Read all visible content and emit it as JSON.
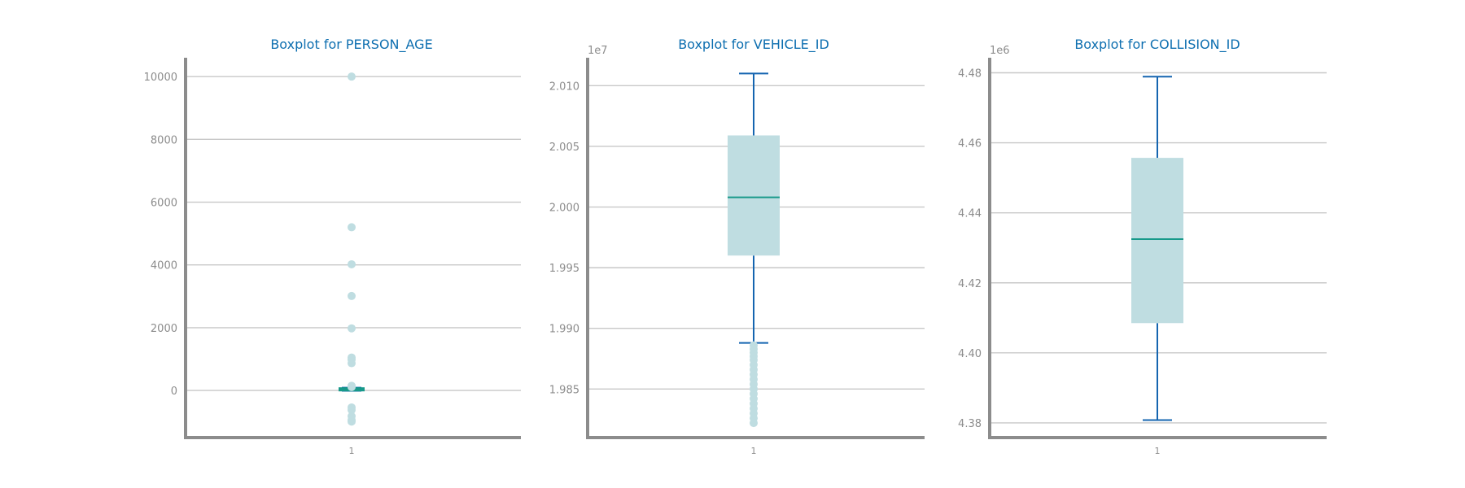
{
  "colors": {
    "title": "#0e6fb0",
    "whisker": "#1565b0",
    "box_fill": "#bfdde1",
    "median": "#17998a",
    "flier": "#bfdde1",
    "grid": "#c8c8c8",
    "axis": "#8c8c8c",
    "tick_text": "#8c8c8c"
  },
  "chart_data": [
    {
      "type": "boxplot",
      "title": "Boxplot for PERSON_AGE",
      "category": "1",
      "offset_label": "",
      "ylim": [
        -1500,
        10600
      ],
      "yticks": [
        0,
        2000,
        4000,
        6000,
        8000,
        10000
      ],
      "ytick_labels": [
        "0",
        "2000",
        "4000",
        "6000",
        "8000",
        "10000"
      ],
      "whisker_low": -10,
      "q1": 22,
      "median": 37,
      "q3": 52,
      "whisker_high": 90,
      "fliers": [
        10000,
        5200,
        4020,
        3010,
        1980,
        1050,
        980,
        870,
        150,
        110,
        -540,
        -620,
        -820,
        -940,
        -990
      ]
    },
    {
      "type": "boxplot",
      "title": "Boxplot for VEHICLE_ID",
      "category": "1",
      "offset_label": "1e7",
      "ylim": [
        1.981,
        2.0123
      ],
      "yticks": [
        1.985,
        1.99,
        1.995,
        2.0,
        2.005,
        2.01
      ],
      "ytick_labels": [
        "1.985",
        "1.990",
        "1.995",
        "2.000",
        "2.005",
        "2.010"
      ],
      "whisker_low": 1.9888,
      "q1": 1.996,
      "median": 2.0008,
      "q3": 2.0059,
      "whisker_high": 2.011,
      "fliers": [
        1.9886,
        1.9883,
        1.988,
        1.9877,
        1.9874,
        1.987,
        1.9866,
        1.9862,
        1.9858,
        1.9854,
        1.985,
        1.9846,
        1.9842,
        1.9838,
        1.9834,
        1.983,
        1.9826,
        1.9822
      ]
    },
    {
      "type": "boxplot",
      "title": "Boxplot for COLLISION_ID",
      "category": "1",
      "offset_label": "1e6",
      "ylim": [
        4.3758,
        4.4843
      ],
      "yticks": [
        4.38,
        4.4,
        4.42,
        4.44,
        4.46,
        4.48
      ],
      "ytick_labels": [
        "4.38",
        "4.40",
        "4.42",
        "4.44",
        "4.46",
        "4.48"
      ],
      "whisker_low": 4.3808,
      "q1": 4.4085,
      "median": 4.4325,
      "q3": 4.4557,
      "whisker_high": 4.4789,
      "fliers": []
    }
  ]
}
